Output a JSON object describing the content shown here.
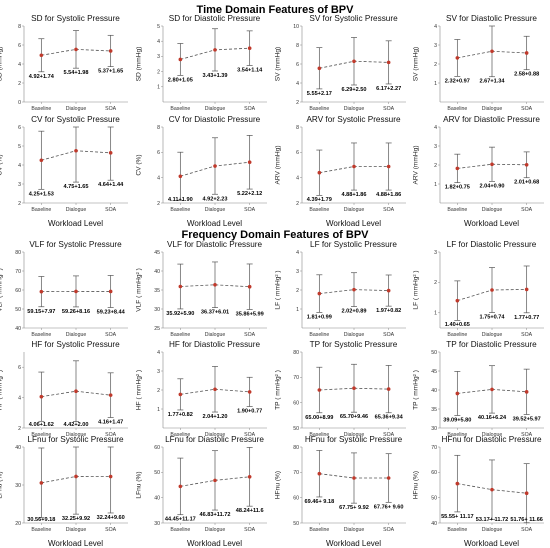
{
  "titles": {
    "time_domain": "Time Domain Features of BPV",
    "frequency_domain": "Frequency Domain Features of BPV"
  },
  "colors": {
    "point": "#c0392b",
    "line": "#555555",
    "error_bar": "#555555",
    "axis": "#888888"
  },
  "chart_data": [
    {
      "type": "line",
      "title": "SD for Systolic Pressure",
      "ylabel": "SD (mmHg)",
      "xlabel": "",
      "categories": [
        "Baseline",
        "Dialogue",
        "SOA"
      ],
      "ylim": [
        0,
        8
      ],
      "yticks": [
        0,
        2,
        4,
        6,
        8
      ],
      "series": [
        {
          "values": [
            4.92,
            5.54,
            5.37
          ],
          "error": [
            1.74,
            1.98,
            1.65
          ]
        }
      ],
      "data_labels": [
        "4.92+1.74",
        "5.54+1.98",
        "5.37+1.65"
      ]
    },
    {
      "type": "line",
      "title": "SD for Diastolic Pressure",
      "ylabel": "SD (mmHg)",
      "xlabel": "",
      "categories": [
        "Baseline",
        "Dialogue",
        "SOA"
      ],
      "ylim": [
        0,
        5
      ],
      "yticks": [
        1,
        2,
        3,
        4,
        5
      ],
      "series": [
        {
          "values": [
            2.8,
            3.43,
            3.54
          ],
          "error": [
            1.05,
            1.39,
            1.14
          ]
        }
      ],
      "data_labels": [
        "2.80+1.05",
        "3.43+1.39",
        "3.54+1.14"
      ]
    },
    {
      "type": "line",
      "title": "SV for Systolic Pressure",
      "ylabel": "SV (mmHg)",
      "xlabel": "",
      "categories": [
        "Baseline",
        "Dialogue",
        "SOA"
      ],
      "ylim": [
        2,
        10
      ],
      "yticks": [
        2,
        4,
        6,
        8,
        10
      ],
      "series": [
        {
          "values": [
            5.55,
            6.29,
            6.17
          ],
          "error": [
            2.17,
            2.5,
            2.27
          ]
        }
      ],
      "data_labels": [
        "5.55+2.17",
        "6.29+2.50",
        "6.17+2.27"
      ]
    },
    {
      "type": "line",
      "title": "SV for Diastolic Pressure",
      "ylabel": "SV (mmHg)",
      "xlabel": "",
      "categories": [
        "Baseline",
        "Dialogue",
        "SOA"
      ],
      "ylim": [
        0,
        4
      ],
      "yticks": [
        1,
        2,
        3,
        4
      ],
      "series": [
        {
          "values": [
            2.32,
            2.67,
            2.58
          ],
          "error": [
            0.97,
            1.34,
            0.88
          ]
        }
      ],
      "data_labels": [
        "2.32+0.97",
        "2.67+1.34",
        "2.58+0.88"
      ]
    },
    {
      "type": "line",
      "title": "CV for Systolic Pressure",
      "ylabel": "CV (%)",
      "xlabel": "Workload Level",
      "categories": [
        "Baseline",
        "Dialogue",
        "SOA"
      ],
      "ylim": [
        2,
        6
      ],
      "yticks": [
        2,
        3,
        4,
        5,
        6
      ],
      "series": [
        {
          "values": [
            4.25,
            4.75,
            4.64
          ],
          "error": [
            1.53,
            1.65,
            1.44
          ]
        }
      ],
      "data_labels": [
        "4.25+1.53",
        "4.75+1.65",
        "4.64+1.44"
      ]
    },
    {
      "type": "line",
      "title": "CV for Diastolic Pressure",
      "ylabel": "CV (%)",
      "xlabel": "Workload Level",
      "categories": [
        "Baseline",
        "Dialogue",
        "SOA"
      ],
      "ylim": [
        2,
        8
      ],
      "yticks": [
        2,
        4,
        6,
        8
      ],
      "series": [
        {
          "values": [
            4.11,
            4.92,
            5.22
          ],
          "error": [
            1.9,
            2.23,
            2.12
          ]
        }
      ],
      "data_labels": [
        "4.11+1.90",
        "4.92+2.23",
        "5.22+2.12"
      ]
    },
    {
      "type": "line",
      "title": "ARV for Systolic Pressure",
      "ylabel": "ARV (mmHg)",
      "xlabel": "Workload Level",
      "categories": [
        "Baseline",
        "Dialogue",
        "SOA"
      ],
      "ylim": [
        2,
        8
      ],
      "yticks": [
        2,
        4,
        6,
        8
      ],
      "series": [
        {
          "values": [
            4.39,
            4.88,
            4.88
          ],
          "error": [
            1.79,
            1.86,
            1.86
          ]
        }
      ],
      "data_labels": [
        "4.39+1.79",
        "4.88+1.86",
        "4.88+1.86"
      ]
    },
    {
      "type": "line",
      "title": "ARV for Diastolic Pressure",
      "ylabel": "ARV (mmHg)",
      "xlabel": "Workload Level",
      "categories": [
        "Baseline",
        "Dialogue",
        "SOA"
      ],
      "ylim": [
        0,
        4
      ],
      "yticks": [
        1,
        2,
        3,
        4
      ],
      "series": [
        {
          "values": [
            1.82,
            2.04,
            2.01
          ],
          "error": [
            0.75,
            0.9,
            0.68
          ]
        }
      ],
      "data_labels": [
        "1.82+0.75",
        "2.04+0.90",
        "2.01+0.68"
      ]
    },
    {
      "type": "line",
      "title": "VLF for Systolic Pressure",
      "ylabel": "VLF ( mmHg² )",
      "xlabel": "",
      "categories": [
        "Baseline",
        "Dialogue",
        "SOA"
      ],
      "ylim": [
        40,
        80
      ],
      "yticks": [
        40,
        50,
        60,
        70,
        80
      ],
      "series": [
        {
          "values": [
            59.15,
            59.26,
            59.23
          ],
          "error": [
            7.97,
            8.16,
            8.44
          ]
        }
      ],
      "data_labels": [
        "59.15+7.97",
        "59.26+8.16",
        "59.23+8.44"
      ]
    },
    {
      "type": "line",
      "title": "VLF for Diastolic Pressure",
      "ylabel": "VLF ( mmHg² )",
      "xlabel": "",
      "categories": [
        "Baseline",
        "Dialogue",
        "SOA"
      ],
      "ylim": [
        25,
        45
      ],
      "yticks": [
        25,
        30,
        35,
        40,
        45
      ],
      "series": [
        {
          "values": [
            35.92,
            36.37,
            35.86
          ],
          "error": [
            5.9,
            6.01,
            5.99
          ]
        }
      ],
      "data_labels": [
        "35.92+5.90",
        "36.37+6.01",
        "35.86+5.99"
      ]
    },
    {
      "type": "line",
      "title": "LF for Systolic Pressure",
      "ylabel": "LF ( mmHg² )",
      "xlabel": "",
      "categories": [
        "Baseline",
        "Dialogue",
        "SOA"
      ],
      "ylim": [
        0,
        4
      ],
      "yticks": [
        1,
        2,
        3,
        4
      ],
      "series": [
        {
          "values": [
            1.81,
            2.02,
            1.97
          ],
          "error": [
            0.99,
            0.89,
            0.82
          ]
        }
      ],
      "data_labels": [
        "1.81+0.99",
        "2.02+0.89",
        "1.97+0.82"
      ]
    },
    {
      "type": "line",
      "title": "LF for Diastolic Pressure",
      "ylabel": "LF ( mmHg² )",
      "xlabel": "",
      "categories": [
        "Baseline",
        "Dialogue",
        "SOA"
      ],
      "ylim": [
        0.5,
        3
      ],
      "yticks": [
        1,
        2,
        3
      ],
      "series": [
        {
          "values": [
            1.4,
            1.75,
            1.77
          ],
          "error": [
            0.65,
            0.74,
            0.77
          ]
        }
      ],
      "data_labels": [
        "1.40+0.65",
        "1.75+0.74",
        "1.77+0.77"
      ]
    },
    {
      "type": "line",
      "title": "HF for Systolic Pressure",
      "ylabel": "HF ( mmHg² )",
      "xlabel": "",
      "categories": [
        "Baseline",
        "Dialogue",
        "SOA"
      ],
      "ylim": [
        2,
        7
      ],
      "yticks": [
        2,
        4,
        6
      ],
      "series": [
        {
          "values": [
            4.06,
            4.42,
            4.16
          ],
          "error": [
            1.62,
            2.0,
            1.47
          ]
        }
      ],
      "data_labels": [
        "4.06+1.62",
        "4.42+2.00",
        "4.16+1.47"
      ]
    },
    {
      "type": "line",
      "title": "HF for Diastolic Pressure",
      "ylabel": "HF ( mmHg² )",
      "xlabel": "",
      "categories": [
        "Baseline",
        "Dialogue",
        "SOA"
      ],
      "ylim": [
        0,
        4
      ],
      "yticks": [
        1,
        2,
        3,
        4
      ],
      "series": [
        {
          "values": [
            1.77,
            2.04,
            1.9
          ],
          "error": [
            0.82,
            1.2,
            0.77
          ]
        }
      ],
      "data_labels": [
        "1.77+0.82",
        "2.04+1.20",
        "1.90+0.77"
      ]
    },
    {
      "type": "line",
      "title": "TP for Systolic Pressure",
      "ylabel": "TP ( mmHg² )",
      "xlabel": "",
      "categories": [
        "Baseline",
        "Dialogue",
        "SOA"
      ],
      "ylim": [
        50,
        80
      ],
      "yticks": [
        50,
        60,
        70,
        80
      ],
      "series": [
        {
          "values": [
            65.0,
            65.7,
            65.36
          ],
          "error": [
            8.99,
            9.46,
            9.34
          ]
        }
      ],
      "data_labels": [
        "65.00+8.99",
        "65.70+9.46",
        "65.36+9.34"
      ]
    },
    {
      "type": "line",
      "title": "TP for Diastolic Pressure",
      "ylabel": "TP ( mmHg² )",
      "xlabel": "",
      "categories": [
        "Baseline",
        "Dialogue",
        "SOA"
      ],
      "ylim": [
        30,
        50
      ],
      "yticks": [
        30,
        35,
        40,
        45,
        50
      ],
      "series": [
        {
          "values": [
            39.09,
            40.16,
            39.52
          ],
          "error": [
            5.8,
            6.24,
            5.97
          ]
        }
      ],
      "data_labels": [
        "39.09+5.80",
        "40.16+6.24",
        "39.52+5.97"
      ]
    },
    {
      "type": "line",
      "title": "LFnu for Systolic Pressure",
      "ylabel": "LFnu (%)",
      "xlabel": "Workload Level",
      "categories": [
        "Baseline",
        "Dialogue",
        "SOA"
      ],
      "ylim": [
        20,
        40
      ],
      "yticks": [
        20,
        30,
        40
      ],
      "series": [
        {
          "values": [
            30.56,
            32.25,
            32.24
          ],
          "error": [
            9.18,
            9.92,
            9.6
          ]
        }
      ],
      "data_labels": [
        "30.56+9.18",
        "32.25+9.92",
        "32.24+9.60"
      ]
    },
    {
      "type": "line",
      "title": "LFnu for Diastolic Pressure",
      "ylabel": "LFnu (%)",
      "xlabel": "Workload Level",
      "categories": [
        "Baseline",
        "Dialogue",
        "SOA"
      ],
      "ylim": [
        30,
        60
      ],
      "yticks": [
        30,
        40,
        50,
        60
      ],
      "series": [
        {
          "values": [
            44.45,
            46.83,
            48.24
          ],
          "error": [
            11.17,
            11.72,
            11.6
          ]
        }
      ],
      "data_labels": [
        "44.45+11.17",
        "46.83+11.72",
        "48.24+11.6"
      ]
    },
    {
      "type": "line",
      "title": "HFnu for Systolic Pressure",
      "ylabel": "HFnu (%)",
      "xlabel": "Workload Level",
      "categories": [
        "Baseline",
        "Dialogue",
        "SOA"
      ],
      "ylim": [
        50,
        80
      ],
      "yticks": [
        50,
        60,
        70,
        80
      ],
      "series": [
        {
          "values": [
            69.46,
            67.75,
            67.76
          ],
          "error": [
            9.18,
            9.92,
            9.6
          ]
        }
      ],
      "data_labels": [
        "69.46+ 9.18",
        "67.75+ 9.92",
        "67.76+ 9.60"
      ]
    },
    {
      "type": "line",
      "title": "HFnu for Diastolic Pressure",
      "ylabel": "HFnu (%)",
      "xlabel": "Workload Level",
      "categories": [
        "Baseline",
        "Dialogue",
        "SOA"
      ],
      "ylim": [
        40,
        70
      ],
      "yticks": [
        40,
        50,
        60,
        70
      ],
      "series": [
        {
          "values": [
            55.55,
            53.17,
            51.76
          ],
          "error": [
            11.17,
            11.72,
            11.66
          ]
        }
      ],
      "data_labels": [
        "55.55+ 11.17",
        "53.17+ 11.72",
        "51.76+ 11.66"
      ]
    }
  ]
}
